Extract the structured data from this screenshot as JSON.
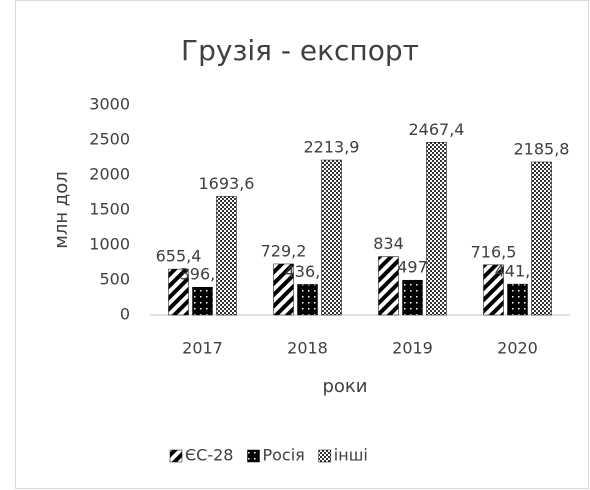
{
  "chart_data": {
    "type": "bar",
    "title": "Грузія - експорт",
    "y_label": "млн дол",
    "x_label": "роки",
    "categories": [
      "2017",
      "2018",
      "2019",
      "2020"
    ],
    "series": [
      {
        "name": "ЄС-28",
        "color": "#000000",
        "pattern": "diagonal",
        "values": [
          655.4,
          729.2,
          834,
          716.5
        ],
        "value_labels": [
          "655,4",
          "729,2",
          "834",
          "716,5"
        ]
      },
      {
        "name": "Росія",
        "color": "#000000",
        "pattern": "dots",
        "values": [
          396.7,
          436.6,
          497,
          441.1
        ],
        "value_labels": [
          "396,7",
          "436,6",
          "497",
          "441,1"
        ]
      },
      {
        "name": "інші",
        "color": "#000000",
        "pattern": "checker",
        "values": [
          1693.6,
          2213.9,
          2467.4,
          2185.8
        ],
        "value_labels": [
          "1693,6",
          "2213,9",
          "2467,4",
          "2185,8"
        ]
      }
    ],
    "ylim": [
      0,
      3000
    ],
    "yticks": [
      0,
      500,
      1000,
      1500,
      2000,
      2500,
      3000
    ],
    "grid": false,
    "legend": "bottom"
  }
}
